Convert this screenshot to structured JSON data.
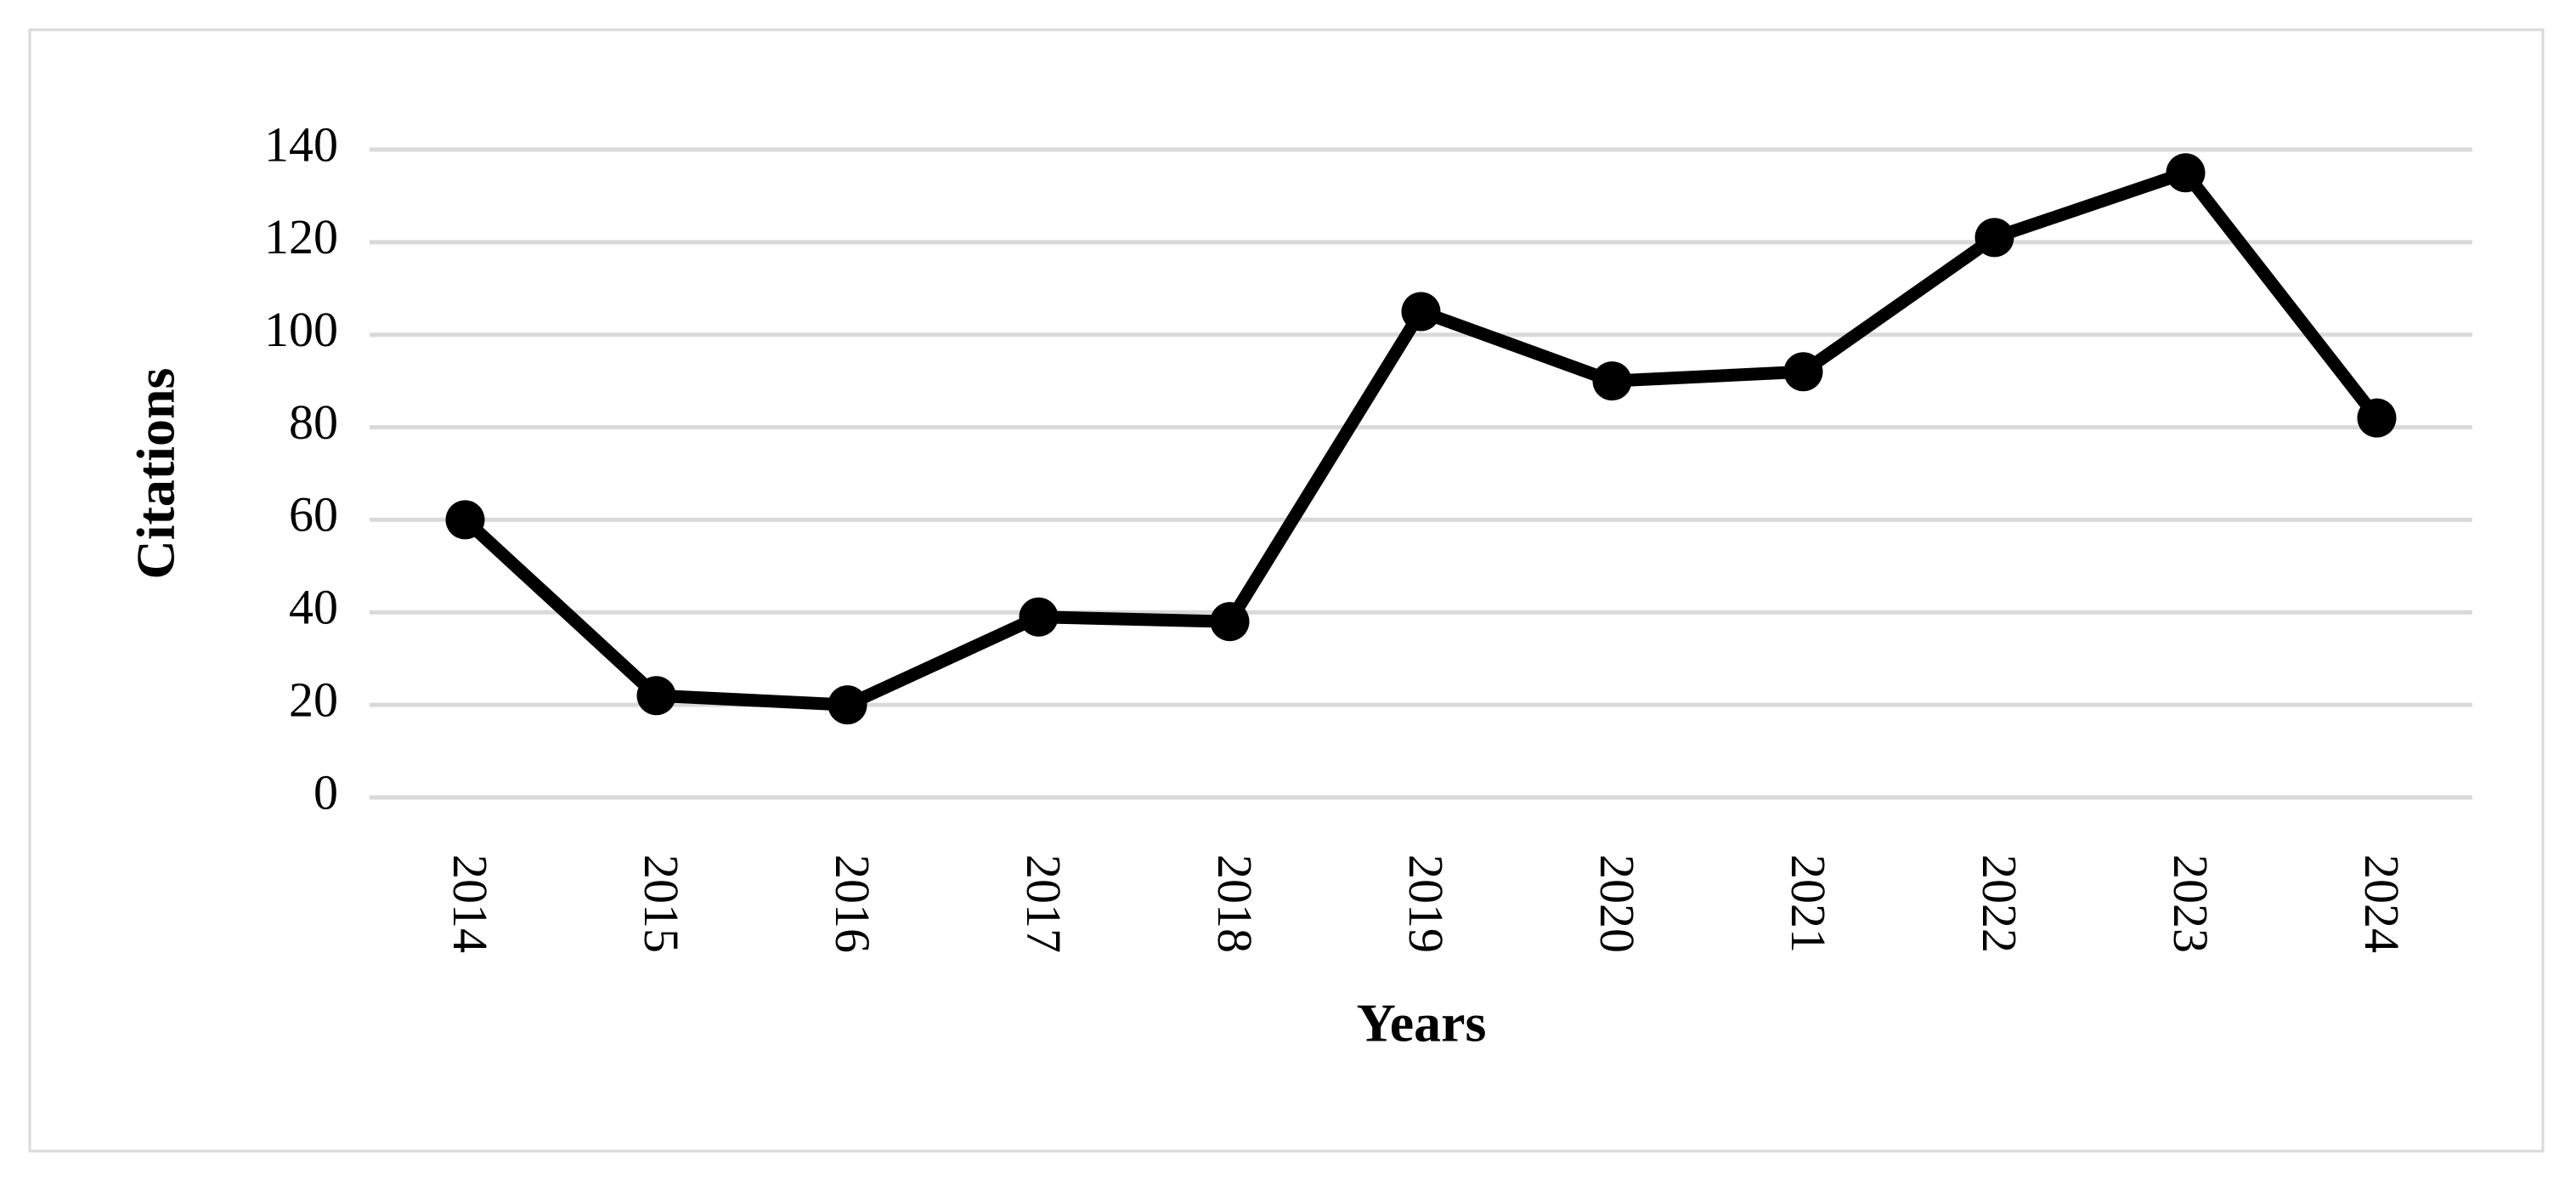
{
  "chart_data": {
    "type": "line",
    "x_label": "Years",
    "y_label": "Citations",
    "categories": [
      "2014",
      "2015",
      "2016",
      "2017",
      "2018",
      "2019",
      "2020",
      "2021",
      "2022",
      "2023",
      "2024"
    ],
    "values": [
      60,
      22,
      20,
      39,
      38,
      105,
      90,
      92,
      121,
      135,
      82
    ],
    "color": "#000000",
    "ylim": [
      0,
      140
    ],
    "yticks": [
      0,
      20,
      40,
      60,
      80,
      100,
      120,
      140
    ],
    "grid": true
  }
}
